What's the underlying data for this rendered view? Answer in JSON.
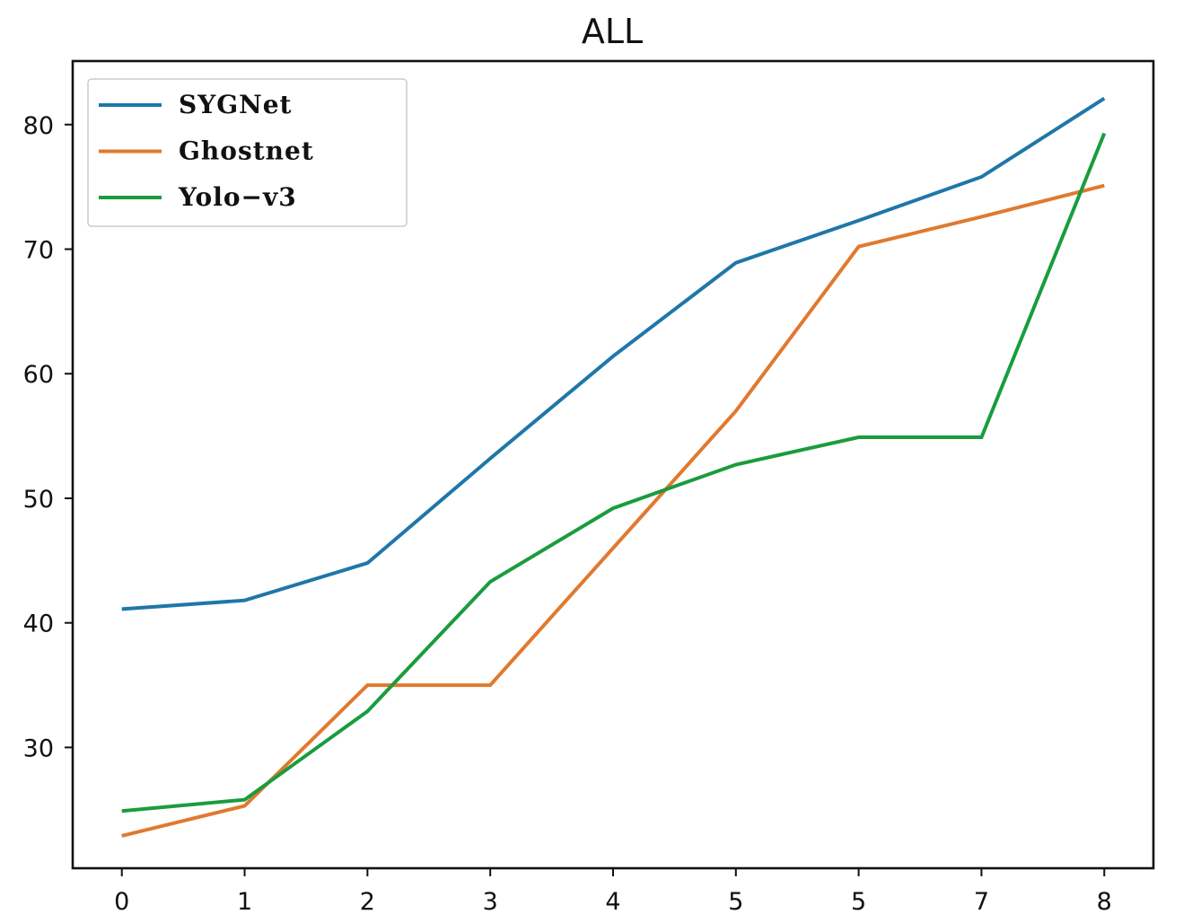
{
  "chart_data": {
    "type": "line",
    "title": "ALL",
    "xlabel": "",
    "ylabel": "",
    "x_tick_labels": [
      "0",
      "1",
      "2",
      "3",
      "4",
      "5",
      "5",
      "7",
      "8"
    ],
    "y_ticks": [
      30,
      40,
      50,
      60,
      70,
      80
    ],
    "y_tick_labels": [
      "30",
      "40",
      "50",
      "60",
      "70",
      "80"
    ],
    "ylim": [
      20.3,
      85.1
    ],
    "xlim": [
      -0.4,
      8.4
    ],
    "grid": false,
    "legend_position": "top-left",
    "series": [
      {
        "name": "SYGNet",
        "color": "#1f77a8",
        "values": [
          41.1,
          41.8,
          44.8,
          53.2,
          61.4,
          68.9,
          72.3,
          75.8,
          82.1
        ]
      },
      {
        "name": "Ghostnet",
        "color": "#e07a2f",
        "values": [
          22.9,
          25.3,
          35.0,
          35.0,
          46.0,
          57.0,
          70.2,
          72.6,
          75.1
        ]
      },
      {
        "name": "Yolo−v3",
        "color": "#1a9c3e",
        "values": [
          24.9,
          25.8,
          32.9,
          43.3,
          49.2,
          52.7,
          54.9,
          54.9,
          79.3
        ]
      }
    ]
  }
}
